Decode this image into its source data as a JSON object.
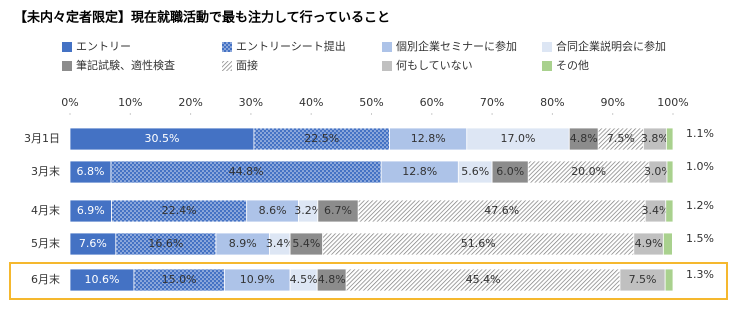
{
  "chart_data": {
    "type": "stacked-bar-horizontal",
    "title": "【未内々定者限定】現在就職活動で最も注力して行っていること",
    "categories": [
      "3月1日",
      "3月末",
      "4月末",
      "5月末",
      "6月末"
    ],
    "xlim": [
      0,
      100
    ],
    "xticks": [
      {
        "value": 0,
        "label": "0%"
      },
      {
        "value": 10,
        "label": "10%"
      },
      {
        "value": 20,
        "label": "20%"
      },
      {
        "value": 30,
        "label": "30%"
      },
      {
        "value": 40,
        "label": "40%"
      },
      {
        "value": 50,
        "label": "50%"
      },
      {
        "value": 60,
        "label": "60%"
      },
      {
        "value": 70,
        "label": "70%"
      },
      {
        "value": 80,
        "label": "80%"
      },
      {
        "value": 90,
        "label": "90%"
      },
      {
        "value": 100,
        "label": "100%"
      }
    ],
    "series": [
      {
        "name": "エントリー",
        "color": "#4472c4",
        "values": [
          30.5,
          6.8,
          6.9,
          7.6,
          10.6
        ],
        "value_labels": [
          "30.5%",
          "6.8%",
          "6.9%",
          "7.6%",
          "10.6%"
        ]
      },
      {
        "name": "エントリーシート提出",
        "color": "#6f92d3",
        "pattern": "dots",
        "values": [
          22.5,
          44.8,
          22.4,
          16.6,
          15.0
        ],
        "value_labels": [
          "22.5%",
          "44.8%",
          "22.4%",
          "16.6%",
          "15.0%"
        ]
      },
      {
        "name": "個別企業セミナーに参加",
        "color": "#adc3e8",
        "values": [
          12.8,
          12.8,
          8.6,
          8.9,
          10.9
        ],
        "value_labels": [
          "12.8%",
          "12.8%",
          "8.6%",
          "8.9%",
          "10.9%"
        ]
      },
      {
        "name": "合同企業説明会に参加",
        "color": "#dde6f4",
        "values": [
          17.0,
          5.6,
          3.2,
          3.4,
          4.5
        ],
        "value_labels": [
          "17.0%",
          "5.6%",
          "3.2%",
          "3.4%",
          "4.5%"
        ]
      },
      {
        "name": "筆記試験、適性検査",
        "color": "#8c8c8c",
        "values": [
          4.8,
          6.0,
          6.7,
          5.4,
          4.8
        ],
        "value_labels": [
          "4.8%",
          "6.0%",
          "6.7%",
          "5.4%",
          "4.8%"
        ]
      },
      {
        "name": "面接",
        "color": "#8c8c8c",
        "pattern": "hatch",
        "values": [
          7.5,
          20.0,
          47.6,
          51.6,
          45.4
        ],
        "value_labels": [
          "7.5%",
          "20.0%",
          "47.6%",
          "51.6%",
          "45.4%"
        ]
      },
      {
        "name": "何もしていない",
        "color": "#c0c0c0",
        "values": [
          3.8,
          3.0,
          3.4,
          4.9,
          7.5
        ],
        "value_labels": [
          "3.8%",
          "3.0%",
          "3.4%",
          "4.9%",
          "7.5%"
        ]
      },
      {
        "name": "その他",
        "color": "#a9d18e",
        "values": [
          1.1,
          1.0,
          1.2,
          1.5,
          1.3
        ],
        "value_labels": [
          "1.1%",
          "1.0%",
          "1.2%",
          "1.5%",
          "1.3%"
        ]
      }
    ]
  }
}
